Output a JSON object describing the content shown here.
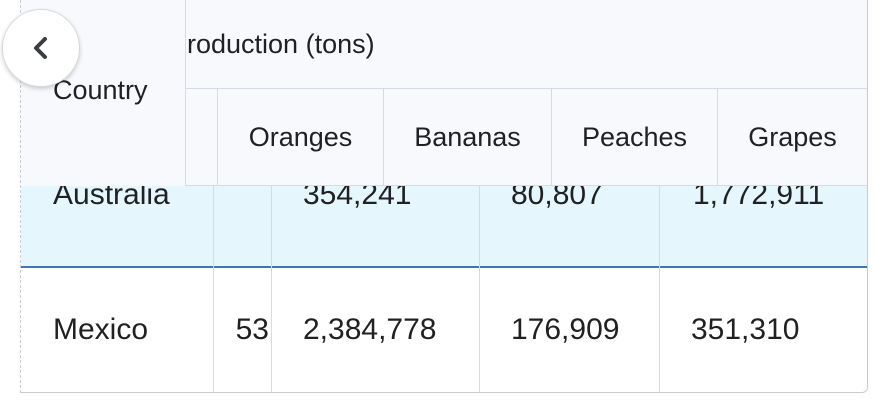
{
  "table": {
    "group_header": "Fruit production (tons)",
    "visible_group_fragment": "roduction (tons)",
    "country_header": "Country",
    "columns": [
      "Oranges",
      "Bananas",
      "Peaches",
      "Grapes"
    ],
    "rows": [
      {
        "country": "Australia",
        "partial_value": "",
        "oranges": "354,241",
        "bananas": "80,807",
        "peaches": "1,772,911"
      },
      {
        "country": "Mexico",
        "partial_value": "53",
        "oranges": "2,384,778",
        "bananas": "176,909",
        "peaches": "351,310"
      }
    ]
  },
  "back_button": {
    "icon": "chevron-left-icon"
  }
}
